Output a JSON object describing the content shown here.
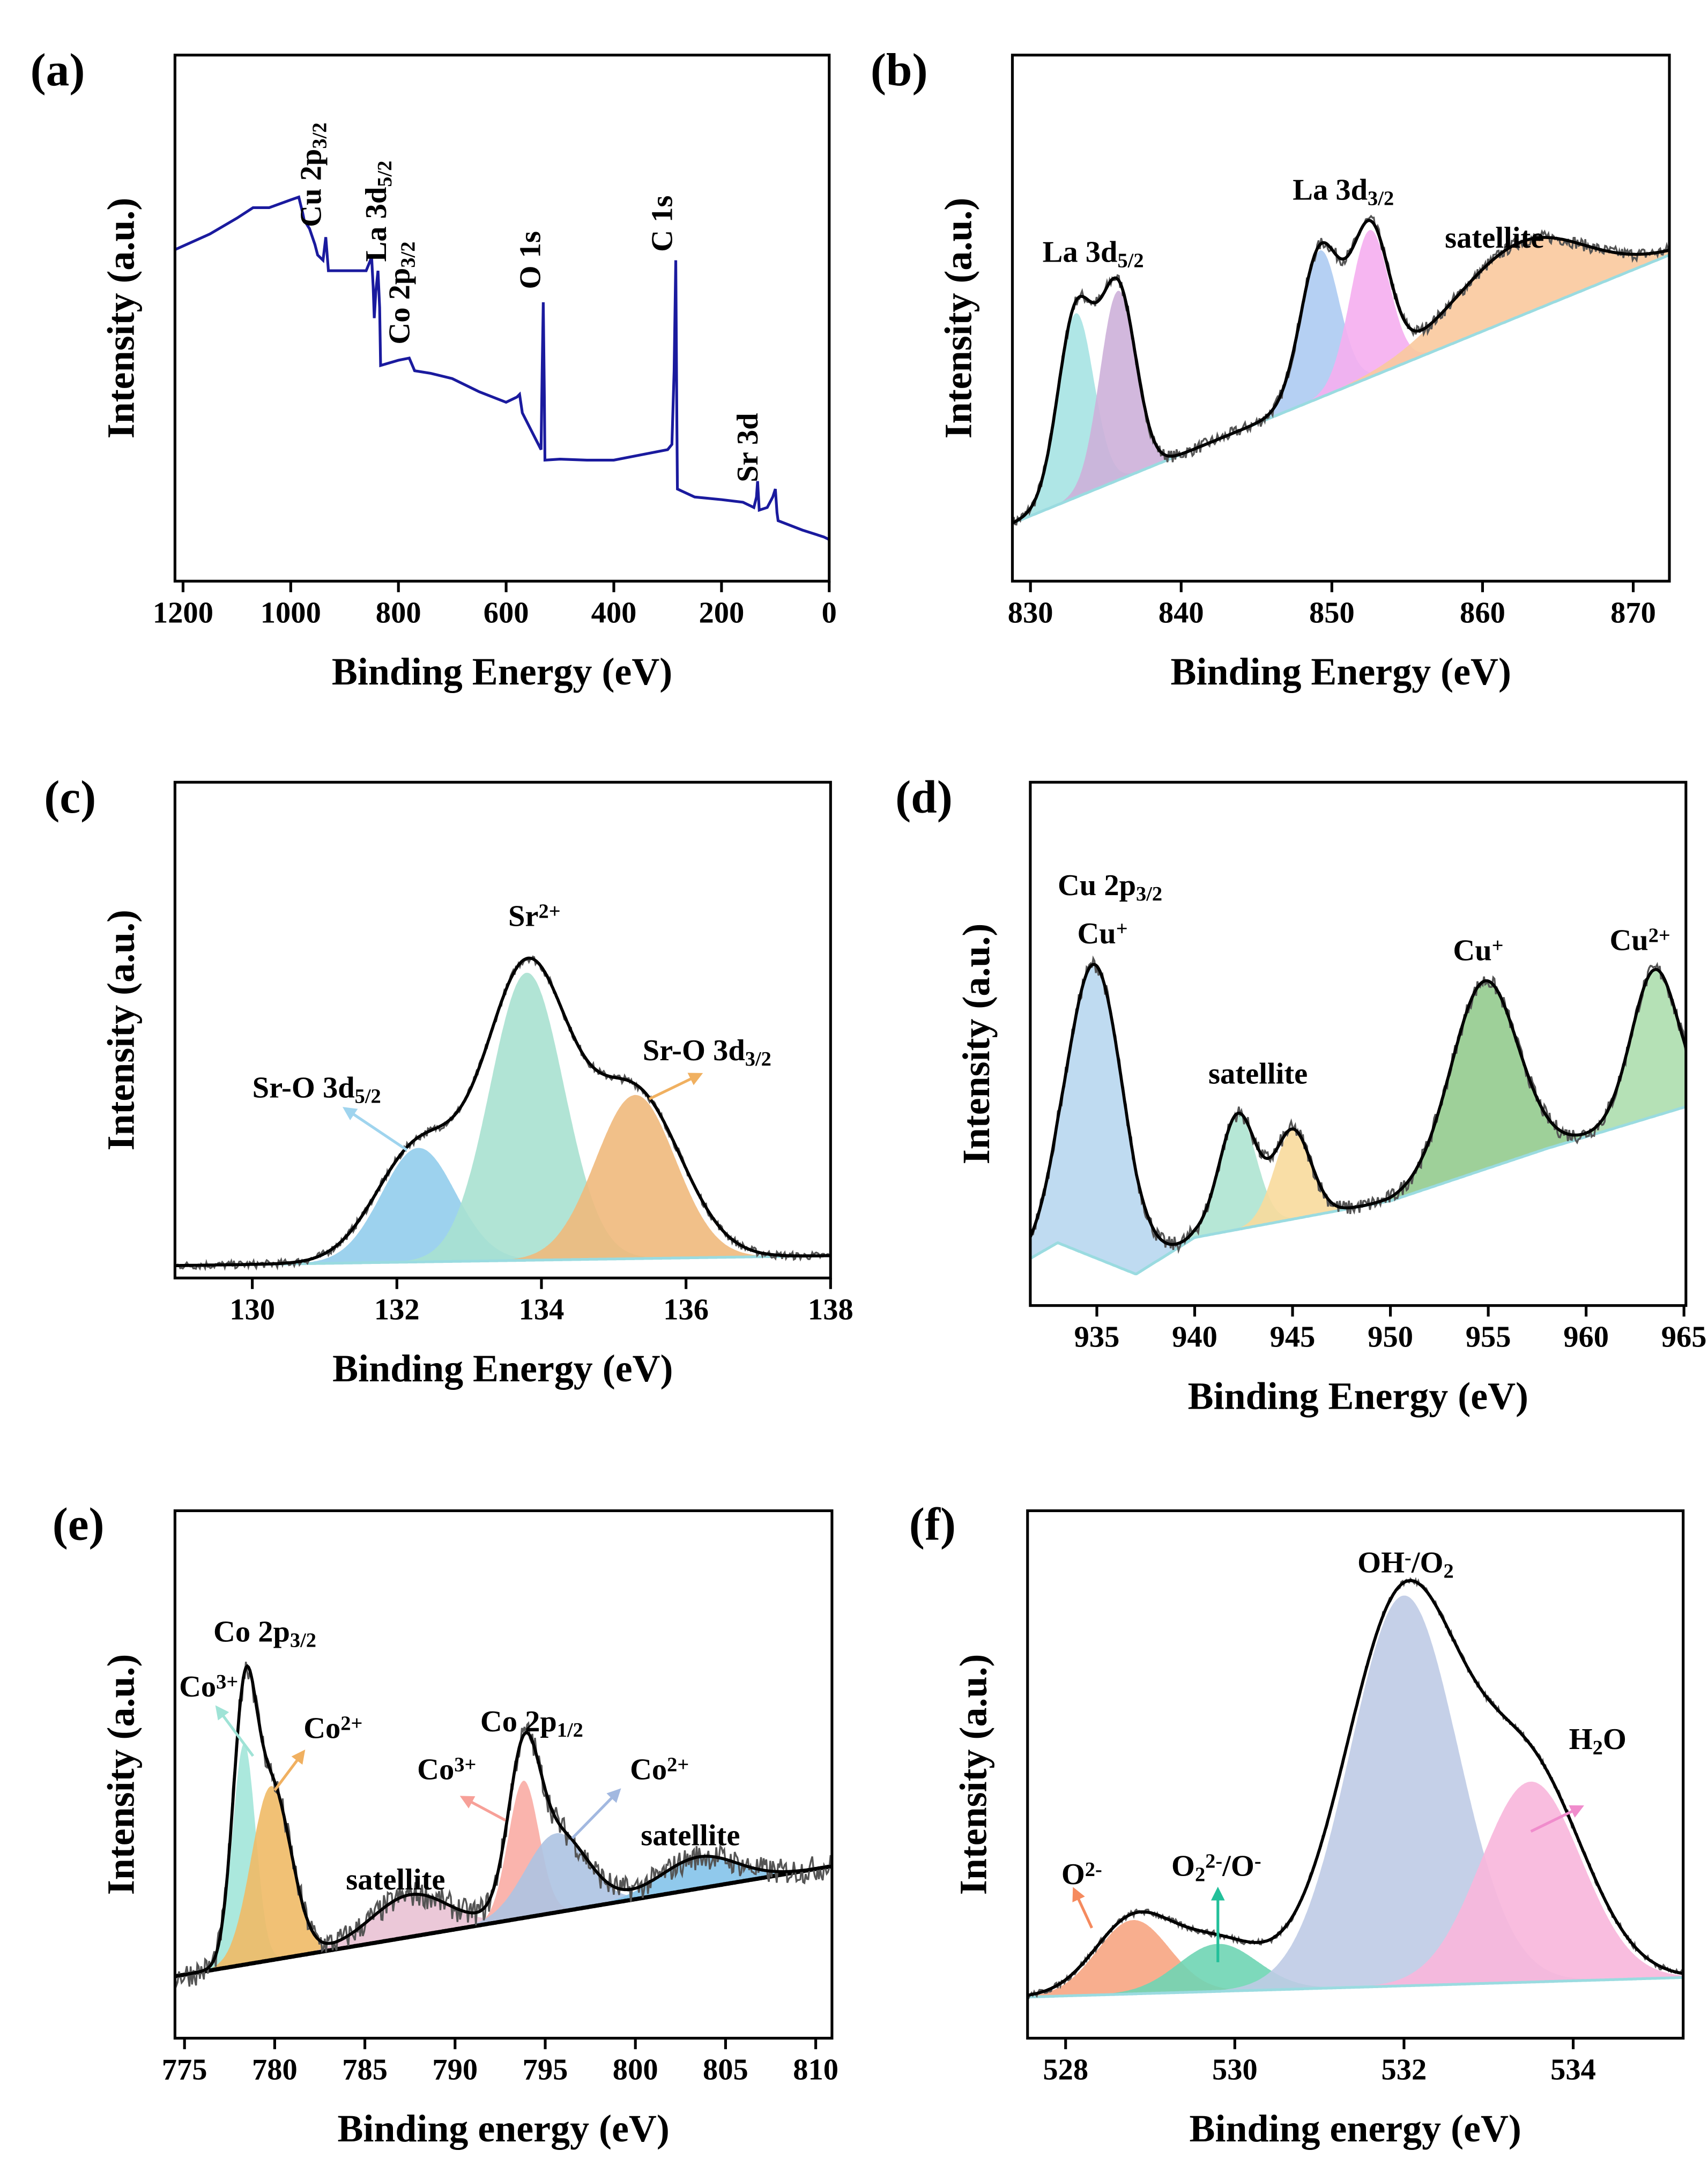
{
  "chart_data": [
    {
      "panel": "(a)",
      "type": "line",
      "xlabel": "Binding Energy (eV)",
      "ylabel": "Intensity (a.u.)",
      "xlim": [
        1215,
        0
      ],
      "ylim": [
        0,
        100
      ],
      "xticks": [
        1200,
        1000,
        800,
        600,
        400,
        200,
        0
      ],
      "line_color": "#1a1a9e",
      "series": [
        {
          "x_y": [
            [
              1215,
              63
            ],
            [
              1150,
              66
            ],
            [
              1100,
              69
            ],
            [
              1070,
              71
            ],
            [
              1040,
              71
            ],
            [
              1000,
              72.5
            ],
            [
              985,
              73
            ],
            [
              978,
              70
            ],
            [
              975,
              68.6
            ],
            [
              965,
              67
            ],
            [
              955,
              64
            ],
            [
              950,
              62
            ],
            [
              940,
              61
            ],
            [
              935,
              65.4
            ],
            [
              930,
              59
            ],
            [
              900,
              59
            ],
            [
              860,
              59
            ],
            [
              852,
              61
            ],
            [
              850,
              62
            ],
            [
              847,
              56
            ],
            [
              845,
              50
            ],
            [
              842,
              55
            ],
            [
              838,
              59
            ],
            [
              835,
              52
            ],
            [
              833,
              41
            ],
            [
              800,
              42
            ],
            [
              780,
              42.4
            ],
            [
              770,
              40
            ],
            [
              740,
              39.5
            ],
            [
              700,
              38.5
            ],
            [
              650,
              36
            ],
            [
              600,
              34
            ],
            [
              580,
              35
            ],
            [
              575,
              35.5
            ],
            [
              570,
              32
            ],
            [
              545,
              27
            ],
            [
              535,
              25
            ],
            [
              533,
              40
            ],
            [
              531,
              53
            ],
            [
              529,
              35
            ],
            [
              528,
              23
            ],
            [
              500,
              23.2
            ],
            [
              450,
              23
            ],
            [
              400,
              23
            ],
            [
              350,
              24
            ],
            [
              300,
              25
            ],
            [
              292,
              26
            ],
            [
              288,
              40
            ],
            [
              285,
              61
            ],
            [
              283,
              30
            ],
            [
              282,
              17.5
            ],
            [
              250,
              16
            ],
            [
              200,
              15.5
            ],
            [
              160,
              15
            ],
            [
              140,
              14
            ],
            [
              135,
              16
            ],
            [
              133,
              19
            ],
            [
              130,
              13.5
            ],
            [
              115,
              14
            ],
            [
              105,
              16
            ],
            [
              100,
              17.5
            ],
            [
              97,
              13
            ],
            [
              95,
              11.5
            ],
            [
              50,
              9.7
            ],
            [
              10,
              8.4
            ],
            [
              0,
              7.9
            ]
          ]
        }
      ],
      "annotations": [
        {
          "parts": [
            [
              "Cu 2p",
              ""
            ],
            [
              "3/2",
              "sub"
            ]
          ],
          "x": 944,
          "y": 67.3,
          "rotate": true
        },
        {
          "parts": [
            [
              "La 3d",
              ""
            ],
            [
              "5/2",
              "sub"
            ]
          ],
          "x": 823,
          "y": 60.7,
          "rotate": true
        },
        {
          "parts": [
            [
              "Co 2p",
              ""
            ],
            [
              "3/2",
              "sub"
            ]
          ],
          "x": 780,
          "y": 45,
          "rotate": true
        },
        {
          "parts": [
            [
              "O 1s",
              ""
            ]
          ],
          "x": 537,
          "y": 55.5,
          "rotate": true
        },
        {
          "parts": [
            [
              "C 1s",
              ""
            ]
          ],
          "x": 292,
          "y": 62.6,
          "rotate": true
        },
        {
          "parts": [
            [
              "Sr 3d",
              ""
            ]
          ],
          "x": 133,
          "y": 18.8,
          "rotate": true
        }
      ]
    },
    {
      "panel": "(b)",
      "type": "area",
      "xlabel": "Binding Energy (eV)",
      "ylabel": "Intensity (a.u.)",
      "xlim": [
        828.8,
        872.4
      ],
      "ylim": [
        0,
        100
      ],
      "xticks": [
        830,
        840,
        850,
        860,
        870
      ],
      "background": [
        [
          828.8,
          11
        ],
        [
          872.4,
          62
        ]
      ],
      "noise": 1.2,
      "peaks": [
        {
          "center": 833.0,
          "height": 35,
          "fwhm": 2.8,
          "color": "#a6e3e3"
        },
        {
          "center": 835.8,
          "height": 36,
          "fwhm": 2.8,
          "color": "#cdb0d9"
        },
        {
          "center": 849.2,
          "height": 28,
          "fwhm": 3.0,
          "color": "#adcbf2"
        },
        {
          "center": 852.5,
          "height": 28,
          "fwhm": 3.0,
          "color": "#f5aef0"
        },
        {
          "center": 862.5,
          "height": 14,
          "fwhm": 10,
          "color": "#f9c99d"
        }
      ],
      "annotations": [
        {
          "parts": [
            [
              "La 3d",
              ""
            ],
            [
              "5/2",
              "sub"
            ]
          ],
          "x": 830.8,
          "y": 60.7
        },
        {
          "parts": [
            [
              "La 3d",
              ""
            ],
            [
              "3/2",
              "sub"
            ]
          ],
          "x": 847.4,
          "y": 72.5
        },
        {
          "parts": [
            [
              "satellite",
              ""
            ]
          ],
          "x": 857.5,
          "y": 63.4
        }
      ]
    },
    {
      "panel": "(c)",
      "type": "area",
      "xlabel": "Binding Energy (eV)",
      "ylabel": "Intensity (a.u.)",
      "xlim": [
        128.93,
        138
      ],
      "ylim": [
        0,
        100
      ],
      "xticks": [
        130,
        132,
        134,
        136,
        138
      ],
      "background": [
        [
          128.93,
          2.5
        ],
        [
          138,
          4.5
        ]
      ],
      "noise": 0.8,
      "envelope_broadening": 1.15,
      "peaks": [
        {
          "center": 132.3,
          "height": 23,
          "fwhm": 1.2,
          "color": "#92cdec"
        },
        {
          "center": 133.8,
          "height": 58,
          "fwhm": 1.2,
          "color": "#a9e1d0"
        },
        {
          "center": 135.3,
          "height": 33,
          "fwhm": 1.3,
          "color": "#f0b97c"
        }
      ],
      "annotations": [
        {
          "parts": [
            [
              "Sr-O 3d",
              ""
            ],
            [
              "5/2",
              "sub"
            ]
          ],
          "x": 130.0,
          "y": 36.4,
          "arrow": [
            [
              132.14,
              25.8
            ],
            [
              131.28,
              34.2
            ]
          ],
          "arrow_color": "#9fd4ee"
        },
        {
          "parts": [
            [
              "Sr",
              ""
            ],
            [
              "2+",
              "sup"
            ]
          ],
          "x": 133.54,
          "y": 71
        },
        {
          "parts": [
            [
              "Sr-O 3d",
              ""
            ],
            [
              "3/2",
              "sub"
            ]
          ],
          "x": 135.4,
          "y": 43.9,
          "arrow": [
            [
              135.49,
              36.1
            ],
            [
              136.2,
              41.1
            ]
          ],
          "arrow_color": "#f0b060"
        }
      ]
    },
    {
      "panel": "(d)",
      "type": "area",
      "xlabel": "Binding Energy (eV)",
      "ylabel": "Intensity (a.u.)",
      "xlim": [
        931.6,
        965.1
      ],
      "ylim": [
        0,
        100
      ],
      "xticks": [
        935,
        940,
        945,
        950,
        955,
        960,
        965
      ],
      "background": [
        [
          931.6,
          9
        ],
        [
          933,
          12
        ],
        [
          937,
          6
        ],
        [
          940,
          13
        ],
        [
          950,
          20
        ],
        [
          958,
          30
        ],
        [
          965.1,
          38
        ]
      ],
      "noise": 1.5,
      "peaks": [
        {
          "center": 934.9,
          "height": 56,
          "fwhm": 3.4,
          "color": "#b8d7f0"
        },
        {
          "center": 942.2,
          "height": 22,
          "fwhm": 2.2,
          "color": "#aee4d2"
        },
        {
          "center": 945.0,
          "height": 17,
          "fwhm": 2.2,
          "color": "#f8da9c"
        },
        {
          "center": 954.8,
          "height": 36,
          "fwhm": 4.0,
          "color": "#93cb8e"
        },
        {
          "center": 963.5,
          "height": 28,
          "fwhm": 2.8,
          "color": "#addeae"
        }
      ],
      "annotations": [
        {
          "parts": [
            [
              "Cu 2p",
              ""
            ],
            [
              "3/2",
              "sub"
            ]
          ],
          "x": 933.0,
          "y": 78.4
        },
        {
          "parts": [
            [
              "Cu",
              ""
            ],
            [
              "+",
              "sup"
            ]
          ],
          "x": 934.0,
          "y": 69.2
        },
        {
          "parts": [
            [
              "satellite",
              ""
            ]
          ],
          "x": 940.7,
          "y": 42.4
        },
        {
          "parts": [
            [
              "Cu",
              ""
            ],
            [
              "+",
              "sup"
            ]
          ],
          "x": 953.2,
          "y": 66
        },
        {
          "parts": [
            [
              "Cu",
              ""
            ],
            [
              "2+",
              "sup"
            ]
          ],
          "x": 961.2,
          "y": 67.9
        }
      ]
    },
    {
      "panel": "(e)",
      "type": "area",
      "xlabel": "Binding energy (eV)",
      "ylabel": "Intensity (a.u.)",
      "xlim": [
        774.47,
        810.9
      ],
      "ylim": [
        0,
        100
      ],
      "xticks": [
        775,
        780,
        785,
        790,
        795,
        800,
        805,
        810
      ],
      "background": [
        [
          775.8,
          12.5
        ],
        [
          810.9,
          32.6
        ]
      ],
      "noise": 2.5,
      "baseline_color": "#000000",
      "peaks": [
        {
          "center": 778.3,
          "height": 42,
          "fwhm": 1.5,
          "color": "#a2e6d9"
        },
        {
          "center": 779.8,
          "height": 33,
          "fwhm": 2.6,
          "color": "#f0ba66"
        },
        {
          "center": 787.5,
          "height": 8,
          "fwhm": 5,
          "color": "#e9c2d4"
        },
        {
          "center": 793.8,
          "height": 26,
          "fwhm": 2.0,
          "color": "#f9aca4"
        },
        {
          "center": 795.6,
          "height": 15,
          "fwhm": 4,
          "color": "#adc3e2"
        },
        {
          "center": 803.5,
          "height": 6,
          "fwhm": 5,
          "color": "#84c3ea"
        }
      ],
      "annotations": [
        {
          "parts": [
            [
              "Co 2p",
              ""
            ],
            [
              "3/2",
              "sub"
            ]
          ],
          "x": 776.6,
          "y": 75.2
        },
        {
          "parts": [
            [
              "Co",
              ""
            ],
            [
              "3+",
              "sup"
            ]
          ],
          "x": 774.7,
          "y": 64.8,
          "arrow": [
            [
              778.8,
              53.5
            ],
            [
              776.8,
              62.7
            ]
          ],
          "arrow_color": "#9fe3d6"
        },
        {
          "parts": [
            [
              "Co",
              ""
            ],
            [
              "2+",
              "sup"
            ]
          ],
          "x": 781.6,
          "y": 56.9,
          "arrow": [
            [
              780.0,
              47
            ],
            [
              781.6,
              54.3
            ]
          ],
          "arrow_color": "#f0b060"
        },
        {
          "parts": [
            [
              "satellite",
              ""
            ]
          ],
          "x": 783.95,
          "y": 28.2
        },
        {
          "parts": [
            [
              "Co",
              ""
            ],
            [
              "3+",
              "sup"
            ]
          ],
          "x": 787.9,
          "y": 49.1,
          "arrow": [
            [
              792.8,
              41.3
            ],
            [
              790.4,
              45.7
            ]
          ],
          "arrow_color": "#f7a098"
        },
        {
          "parts": [
            [
              "Co 2p",
              ""
            ],
            [
              "1/2",
              "sub"
            ]
          ],
          "x": 791.4,
          "y": 58.2
        },
        {
          "parts": [
            [
              "Co",
              ""
            ],
            [
              "2+",
              "sup"
            ]
          ],
          "x": 799.7,
          "y": 49.1,
          "arrow": [
            [
              796.5,
              37.9
            ],
            [
              799.1,
              47
            ]
          ],
          "arrow_color": "#a2b8e0"
        },
        {
          "parts": [
            [
              "satellite",
              ""
            ]
          ],
          "x": 800.3,
          "y": 36.6
        }
      ]
    },
    {
      "panel": "(f)",
      "type": "area",
      "xlabel": "Binding energy (eV)",
      "ylabel": "Intensity (a.u.)",
      "xlim": [
        527.55,
        535.3
      ],
      "ylim": [
        0,
        100
      ],
      "xticks": [
        528,
        530,
        532,
        534
      ],
      "background": [
        [
          527.55,
          7.8
        ],
        [
          535.3,
          11.5
        ]
      ],
      "noise": 0.6,
      "envelope_broadening": 1.08,
      "peaks": [
        {
          "center": 528.8,
          "height": 14,
          "fwhm": 1.0,
          "color": "#f7a582"
        },
        {
          "center": 529.8,
          "height": 9,
          "fwhm": 1.1,
          "color": "#6fd5b4"
        },
        {
          "center": 532.0,
          "height": 74,
          "fwhm": 1.5,
          "color": "#bfcbe6"
        },
        {
          "center": 533.5,
          "height": 38,
          "fwhm": 1.4,
          "color": "#f8b6dc"
        }
      ],
      "annotations": [
        {
          "parts": [
            [
              "O",
              ""
            ],
            [
              "2-",
              "sup"
            ]
          ],
          "x": 527.95,
          "y": 29.2,
          "arrow": [
            [
              528.31,
              20.9
            ],
            [
              528.1,
              28.2
            ]
          ],
          "arrow_color": "#f58a5e"
        },
        {
          "parts": [
            [
              "O",
              ""
            ],
            [
              "2",
              "sub"
            ],
            [
              "2-",
              "sup"
            ],
            [
              "/O",
              ""
            ],
            [
              "-",
              "sup"
            ]
          ],
          "x": 529.25,
          "y": 30.8,
          "arrow": [
            [
              529.8,
              14.4
            ],
            [
              529.8,
              28.2
            ]
          ],
          "arrow_color": "#22c09a"
        },
        {
          "parts": [
            [
              "OH",
              ""
            ],
            [
              "-",
              "sup"
            ],
            [
              "/O",
              ""
            ],
            [
              "2",
              "sub"
            ]
          ],
          "x": 531.45,
          "y": 88.3
        },
        {
          "parts": [
            [
              "H",
              ""
            ],
            [
              "2",
              "sub"
            ],
            [
              "O",
              ""
            ]
          ],
          "x": 533.95,
          "y": 54.8,
          "arrow": [
            [
              533.5,
              39.2
            ],
            [
              534.1,
              43.9
            ]
          ],
          "arrow_color": "#f08ccc"
        }
      ]
    }
  ]
}
